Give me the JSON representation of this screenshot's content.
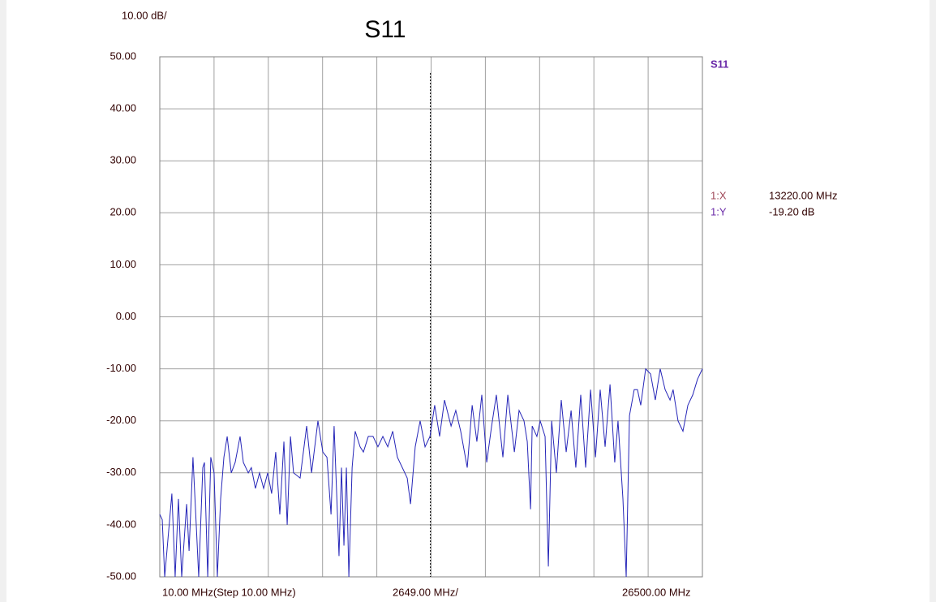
{
  "chart_data": {
    "type": "line",
    "title": "S11",
    "scale_label": "10.00 dB/",
    "x_start_label": "10.00 MHz(Step 10.00 MHz)",
    "x_step_label": "2649.00 MHz/",
    "x_stop_label": "26500.00 MHz",
    "xlim": [
      10,
      26500
    ],
    "xticks": [
      10,
      2659,
      5308,
      7957,
      10606,
      13255,
      15904,
      18553,
      21202,
      23851,
      26500
    ],
    "ylim": [
      -50,
      50
    ],
    "yticks": [
      {
        "value": 50,
        "label": "50.00"
      },
      {
        "value": 40,
        "label": "40.00"
      },
      {
        "value": 30,
        "label": "30.00"
      },
      {
        "value": 20,
        "label": "20.00"
      },
      {
        "value": 10,
        "label": "10.00"
      },
      {
        "value": 0,
        "label": "0.00"
      },
      {
        "value": -10,
        "label": "-10.00"
      },
      {
        "value": -20,
        "label": "-20.00"
      },
      {
        "value": -30,
        "label": "-30.00"
      },
      {
        "value": -40,
        "label": "-40.00"
      },
      {
        "value": -50,
        "label": "-50.00"
      }
    ],
    "grid": true,
    "x": [
      10,
      130,
      250,
      600,
      760,
      920,
      1080,
      1320,
      1440,
      1630,
      1790,
      1910,
      2110,
      2190,
      2350,
      2500,
      2660,
      2820,
      2980,
      3140,
      3300,
      3500,
      3690,
      3930,
      4090,
      4330,
      4480,
      4680,
      4880,
      5080,
      5280,
      5470,
      5670,
      5870,
      6070,
      6230,
      6390,
      6540,
      6860,
      7180,
      7420,
      7730,
      7970,
      8170,
      8370,
      8520,
      8760,
      8880,
      9000,
      9120,
      9240,
      9400,
      9550,
      9790,
      9950,
      10190,
      10420,
      10660,
      10900,
      11140,
      11380,
      11610,
      11850,
      12090,
      12250,
      12480,
      12720,
      12960,
      13200,
      13430,
      13670,
      13910,
      14230,
      14460,
      14700,
      15020,
      15260,
      15490,
      15730,
      15970,
      16210,
      16440,
      16760,
      17000,
      17320,
      17550,
      17790,
      17950,
      18110,
      18190,
      18420,
      18580,
      18820,
      18980,
      19140,
      19370,
      19610,
      19850,
      20090,
      20320,
      20560,
      20800,
      21040,
      21280,
      21510,
      21750,
      21990,
      22220,
      22380,
      22620,
      22780,
      22940,
      23170,
      23330,
      23490,
      23730,
      23970,
      24200,
      24440,
      24680,
      24920,
      25070,
      25310,
      25550,
      25790,
      26030,
      26260,
      26500
    ],
    "series": [
      {
        "name": "S11",
        "color": "#2626b8",
        "values": [
          -38,
          -39,
          -50,
          -34,
          -50,
          -35,
          -50,
          -36,
          -45,
          -27,
          -40,
          -50,
          -29,
          -28,
          -50,
          -27,
          -30,
          -50,
          -35,
          -27,
          -23,
          -30,
          -28,
          -23,
          -28,
          -30,
          -29,
          -33,
          -30,
          -33,
          -30,
          -34,
          -26,
          -38,
          -24,
          -40,
          -23,
          -30,
          -31,
          -21,
          -30,
          -20,
          -26,
          -27,
          -38,
          -21,
          -46,
          -29,
          -44,
          -29,
          -50,
          -29,
          -22,
          -25,
          -26,
          -23,
          -23,
          -25,
          -23,
          -25,
          -22,
          -27,
          -29,
          -31,
          -36,
          -25,
          -20,
          -25,
          -23,
          -17,
          -23,
          -16,
          -21,
          -18,
          -22,
          -29,
          -17,
          -24,
          -15,
          -28,
          -21,
          -15,
          -27,
          -15,
          -26,
          -18,
          -20,
          -24,
          -37,
          -21,
          -23,
          -20,
          -23,
          -48,
          -20,
          -30,
          -16,
          -26,
          -18,
          -29,
          -15,
          -29,
          -14,
          -27,
          -14,
          -25,
          -13,
          -28,
          -20,
          -35,
          -50,
          -19,
          -14,
          -14,
          -17,
          -10,
          -11,
          -16,
          -10,
          -14,
          -16,
          -14,
          -20,
          -22,
          -17,
          -15,
          -12,
          -10
        ]
      }
    ],
    "marker": {
      "x_label": "1:X",
      "x_text": "13220.00 MHz",
      "y_label": "1:Y",
      "y_text": "-19.20 dB",
      "x": 13220,
      "y": -19.2
    }
  }
}
